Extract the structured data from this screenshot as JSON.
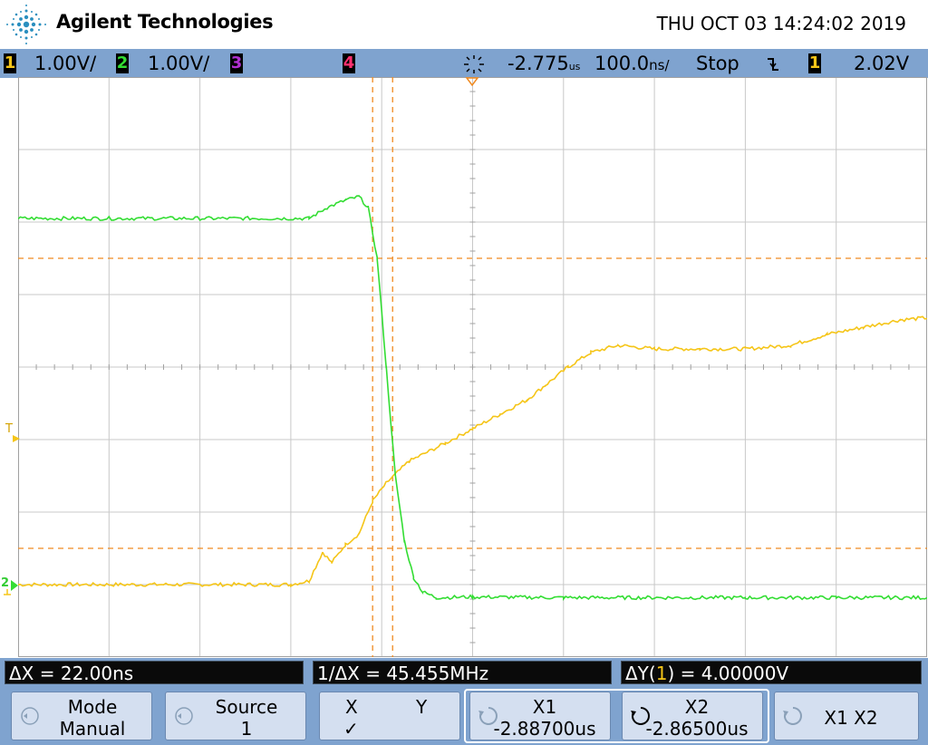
{
  "header": {
    "brand": "Agilent Technologies",
    "datetime": "THU OCT 03 14:24:02 2019",
    "logo_icon": "agilent-spark-icon"
  },
  "status": {
    "ch1_num": "1",
    "ch1_scale": "1.00V/",
    "ch2_num": "2",
    "ch2_scale": "1.00V/",
    "ch3_num": "3",
    "ch4_num": "4",
    "time_delay": "-2.775",
    "time_delay_unit": "us",
    "time_scale": "100.0",
    "time_scale_unit": "ns/",
    "run_state": "Stop",
    "trigger_slope_icon": "falling-edge-icon",
    "trigger_source": "1",
    "trigger_level": "2.02V"
  },
  "colors": {
    "ch1": "#f5c518",
    "ch2": "#33dd33",
    "ch3": "#b030d0",
    "ch4": "#ff3070",
    "cursor": "#f08a20",
    "bar": "#7fa3cf",
    "grid": "#c8c8c8"
  },
  "markers": {
    "trigger": "T",
    "ground2": "2"
  },
  "readouts": {
    "dx": "ΔX = 22.00ns",
    "inv_dx": "1/ΔX = 45.455MHz",
    "dy_prefix": "ΔY(",
    "dy_channel": "1",
    "dy_suffix": ") = 4.00000V"
  },
  "softkeys": {
    "mode_label": "Mode",
    "mode_value": "Manual",
    "source_label": "Source",
    "source_value": "1",
    "x_label": "X",
    "y_label": "Y",
    "x_check": "✓",
    "x1_label": "X1",
    "x1_value": "-2.88700us",
    "x2_label": "X2",
    "x2_value": "-2.86500us",
    "x1x2_label": "X1 X2"
  },
  "chart_data": {
    "type": "line",
    "xlim_divisions": [
      0,
      10
    ],
    "ylim_divisions": [
      0,
      8
    ],
    "grid": true,
    "series": [
      {
        "name": "1",
        "color": "#f5c518",
        "points": [
          [
            0,
            1.0
          ],
          [
            3.0,
            1.0
          ],
          [
            3.2,
            1.05
          ],
          [
            3.35,
            1.45
          ],
          [
            3.45,
            1.3
          ],
          [
            3.6,
            1.55
          ],
          [
            3.75,
            1.7
          ],
          [
            3.9,
            2.15
          ],
          [
            4.05,
            2.4
          ],
          [
            4.3,
            2.7
          ],
          [
            4.7,
            2.95
          ],
          [
            5.0,
            3.15
          ],
          [
            5.3,
            3.35
          ],
          [
            5.6,
            3.55
          ],
          [
            5.8,
            3.75
          ],
          [
            6.05,
            4.0
          ],
          [
            6.3,
            4.2
          ],
          [
            6.6,
            4.3
          ],
          [
            7.0,
            4.25
          ],
          [
            7.5,
            4.25
          ],
          [
            8.0,
            4.25
          ],
          [
            8.5,
            4.3
          ],
          [
            8.9,
            4.45
          ],
          [
            9.3,
            4.55
          ],
          [
            9.7,
            4.65
          ],
          [
            10.0,
            4.68
          ]
        ]
      },
      {
        "name": "2",
        "color": "#33dd33",
        "points": [
          [
            0,
            6.05
          ],
          [
            3.2,
            6.05
          ],
          [
            3.4,
            6.2
          ],
          [
            3.6,
            6.3
          ],
          [
            3.75,
            6.35
          ],
          [
            3.85,
            6.2
          ],
          [
            3.95,
            5.5
          ],
          [
            4.05,
            4.0
          ],
          [
            4.15,
            2.5
          ],
          [
            4.25,
            1.6
          ],
          [
            4.35,
            1.1
          ],
          [
            4.45,
            0.9
          ],
          [
            4.6,
            0.82
          ],
          [
            5.0,
            0.83
          ],
          [
            6.0,
            0.82
          ],
          [
            7.0,
            0.82
          ],
          [
            8.0,
            0.82
          ],
          [
            9.0,
            0.82
          ],
          [
            9.5,
            0.82
          ],
          [
            10.0,
            0.82
          ]
        ]
      }
    ],
    "cursors": {
      "x1_div": 3.9,
      "x2_div": 4.12,
      "y1_div": 4.0,
      "y2_div": 0.0
    },
    "horizontal_cursors_div": [
      5.5,
      1.5
    ]
  }
}
